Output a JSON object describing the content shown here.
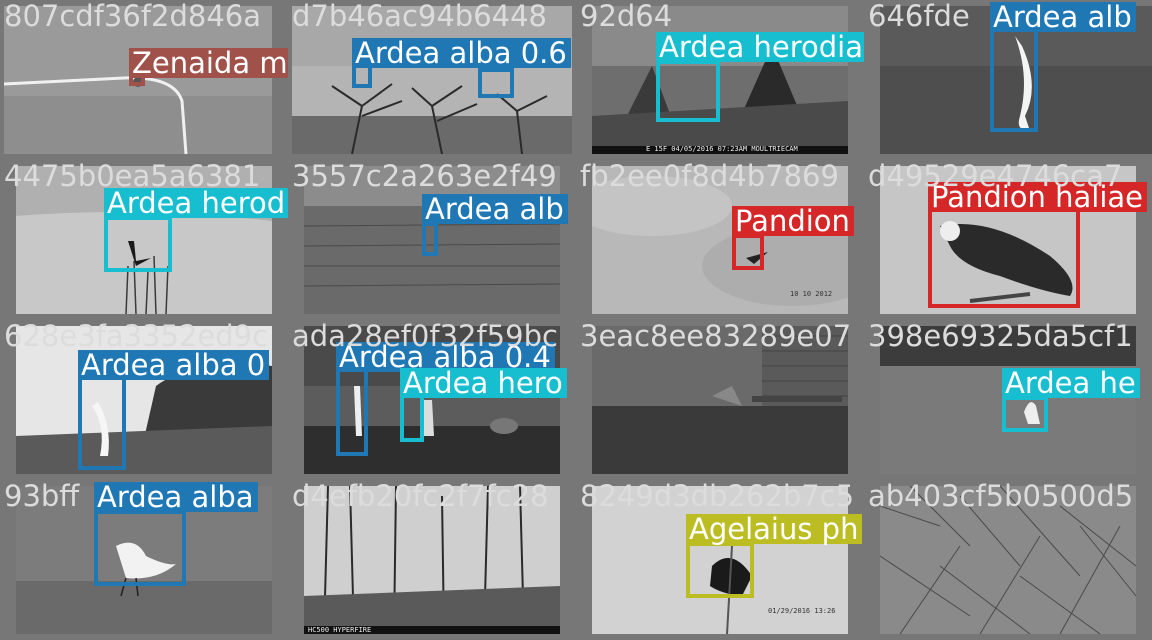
{
  "tiles": [
    {
      "id": "807cdf36f2d846a",
      "detections": [
        {
          "label": "Zenaida m",
          "color": "#a0524a"
        }
      ]
    },
    {
      "id": "d7b46ac94b6448",
      "detections": [
        {
          "label": "Ardea alba 0.6",
          "color": "#1f77b4"
        }
      ]
    },
    {
      "id": "92d64",
      "detections": [
        {
          "label": "Ardea herodia",
          "color": "#17becf"
        }
      ],
      "overlay": "E 15F 04/05/2016 07:23AM MOULTRIECAM"
    },
    {
      "id": "646fde",
      "detections": [
        {
          "label": "Ardea alb",
          "color": "#1f77b4"
        }
      ]
    },
    {
      "id": "4475b0ea5a6381",
      "detections": [
        {
          "label": "Ardea herod",
          "color": "#17becf"
        }
      ]
    },
    {
      "id": "3557c2a263e2f49",
      "detections": [
        {
          "label": "Ardea alb",
          "color": "#1f77b4"
        }
      ]
    },
    {
      "id": "fb2ee0f8d4b7869",
      "detections": [
        {
          "label": "Pandion",
          "color": "#d62728"
        }
      ],
      "overlay": "10 10 2012"
    },
    {
      "id": "d49529e4746ca7",
      "detections": [
        {
          "label": "Pandion haliae",
          "color": "#d62728"
        }
      ]
    },
    {
      "id": "628e3fa3352ed9c",
      "detections": [
        {
          "label": "Ardea alba 0",
          "color": "#1f77b4"
        }
      ]
    },
    {
      "id": "ada28ef0f32f59bc",
      "detections": [
        {
          "label": "Ardea alba 0.4",
          "color": "#1f77b4"
        },
        {
          "label": "Ardea hero",
          "color": "#17becf"
        }
      ]
    },
    {
      "id": "3eac8ee83289e07",
      "detections": []
    },
    {
      "id": "398e69325da5cf1",
      "detections": [
        {
          "label": "Ardea he",
          "color": "#17becf"
        }
      ]
    },
    {
      "id": "93bff",
      "detections": [
        {
          "label": "Ardea alba",
          "color": "#1f77b4"
        }
      ]
    },
    {
      "id": "d4efb20fc2f7fc28",
      "detections": [],
      "overlay": "HC500 HYPERFIRE"
    },
    {
      "id": "8249d3db262b7c5",
      "detections": [
        {
          "label": "Agelaius ph",
          "color": "#bcbd22"
        }
      ],
      "overlay": "01/29/2016 13:26"
    },
    {
      "id": "ab403cf5b0500d5",
      "detections": []
    }
  ]
}
